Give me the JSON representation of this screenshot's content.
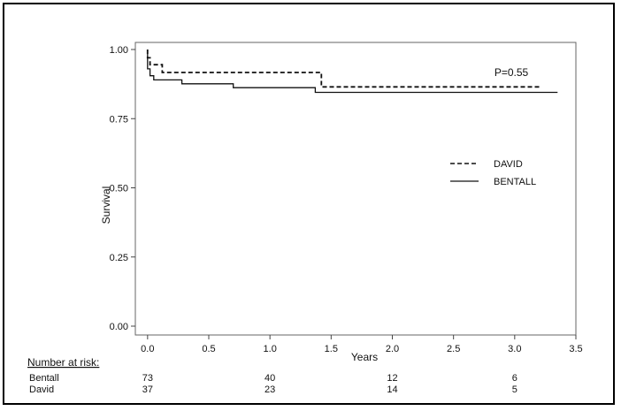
{
  "chart_data": {
    "type": "line",
    "title": "",
    "xlabel": "Years",
    "ylabel": "Survival",
    "xlim": [
      -0.1,
      3.5
    ],
    "ylim": [
      0.0,
      1.0
    ],
    "x_ticks": [
      "0.0",
      "0.5",
      "1.0",
      "1.5",
      "2.0",
      "2.5",
      "3.0",
      "3.5"
    ],
    "y_ticks": [
      "0.00",
      "0.25",
      "0.50",
      "0.75",
      "1.00"
    ],
    "grid": false,
    "legend_position": "right",
    "annotation": "P=0.55",
    "series": [
      {
        "name": "DAVID",
        "style": "dashed",
        "color": "#111111",
        "x": [
          0.0,
          0.0,
          0.02,
          0.02,
          0.12,
          0.12,
          1.42,
          1.42,
          3.2
        ],
        "y": [
          1.0,
          0.97,
          0.97,
          0.945,
          0.945,
          0.917,
          0.917,
          0.865,
          0.865
        ]
      },
      {
        "name": "BENTALL",
        "style": "solid",
        "color": "#111111",
        "x": [
          0.0,
          0.0,
          0.02,
          0.02,
          0.05,
          0.05,
          0.28,
          0.28,
          0.7,
          0.7,
          1.37,
          1.37,
          3.35
        ],
        "y": [
          1.0,
          0.93,
          0.93,
          0.905,
          0.905,
          0.89,
          0.89,
          0.876,
          0.876,
          0.862,
          0.862,
          0.845,
          0.845
        ]
      }
    ]
  },
  "risk_table": {
    "heading": "Number at risk:",
    "rows": [
      {
        "label": "Bentall",
        "values": [
          "73",
          "40",
          "12",
          "6"
        ]
      },
      {
        "label": "David",
        "values": [
          "37",
          "23",
          "14",
          "5"
        ]
      }
    ],
    "x_positions": [
      0.0,
      1.0,
      2.0,
      3.0
    ]
  }
}
